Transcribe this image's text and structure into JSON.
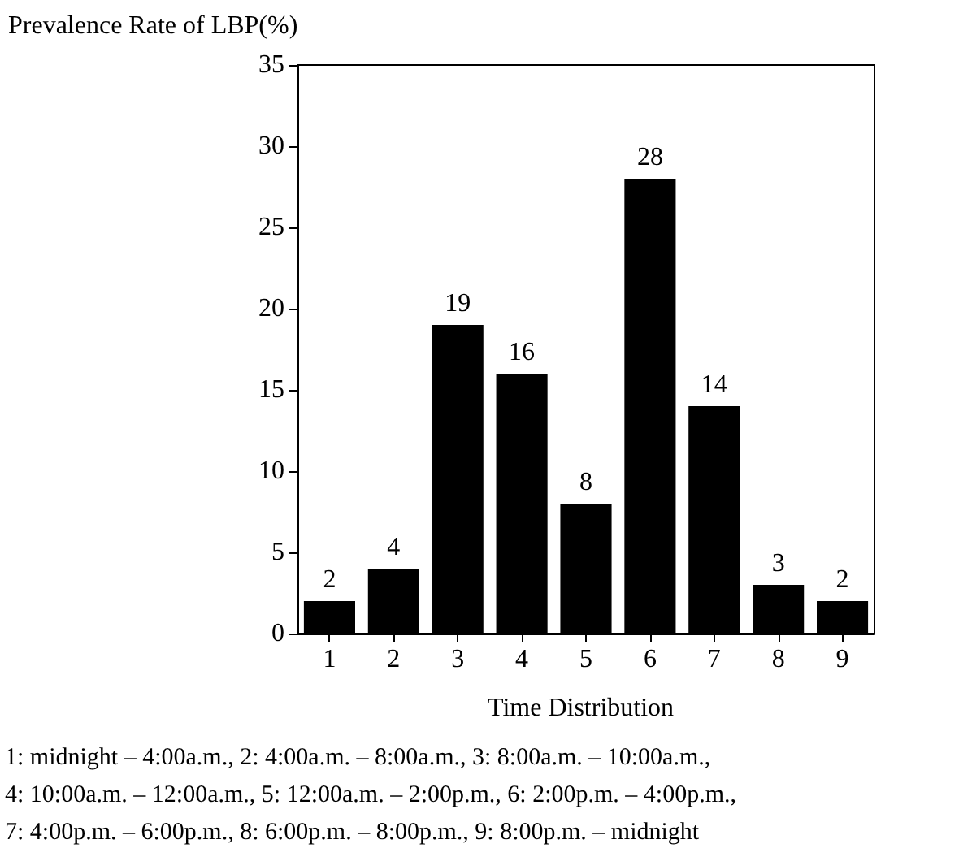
{
  "chart_data": {
    "type": "bar",
    "ylabel": "Prevalence Rate of LBP(%)",
    "xlabel": "Time Distribution",
    "categories": [
      "1",
      "2",
      "3",
      "4",
      "5",
      "6",
      "7",
      "8",
      "9"
    ],
    "values": [
      2,
      4,
      19,
      16,
      8,
      28,
      14,
      3,
      2
    ],
    "color": "#000000",
    "data_labels": true,
    "ylim": [
      0,
      35
    ],
    "yticks": [
      0,
      5,
      10,
      15,
      20,
      25,
      30,
      35
    ],
    "grid": false,
    "annotations": [
      "1: midnight – 4:00a.m., 2: 4:00a.m. – 8:00a.m., 3: 8:00a.m. – 10:00a.m.,",
      "4: 10:00a.m. – 12:00a.m., 5: 12:00a.m. – 2:00p.m., 6: 2:00p.m. – 4:00p.m.,",
      "7: 4:00p.m. – 6:00p.m., 8: 6:00p.m. – 8:00p.m., 9: 8:00p.m. – midnight"
    ]
  }
}
